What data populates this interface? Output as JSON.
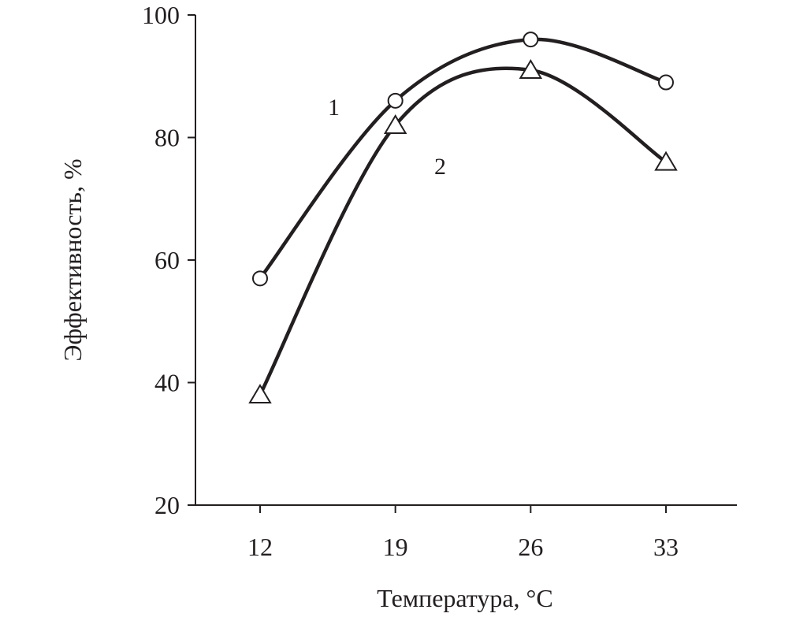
{
  "chart_data": {
    "type": "line",
    "title": "",
    "xlabel": "Температура, °C",
    "ylabel": "Эффективность, %",
    "x": [
      12,
      19,
      26,
      33
    ],
    "x_tick_labels": [
      "12",
      "19",
      "26",
      "33"
    ],
    "y_ticks": [
      20,
      40,
      60,
      80,
      100
    ],
    "y_tick_labels": [
      "20",
      "40",
      "60",
      "80",
      "100"
    ],
    "ylim": [
      20,
      100
    ],
    "grid": false,
    "series": [
      {
        "name": "1",
        "marker": "circle",
        "values": [
          57,
          86,
          96,
          89
        ]
      },
      {
        "name": "2",
        "marker": "triangle",
        "values": [
          38,
          82,
          91,
          76
        ]
      }
    ],
    "line_color": "#231f20"
  }
}
